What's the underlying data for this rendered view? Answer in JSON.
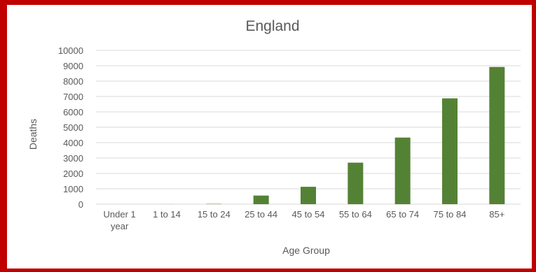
{
  "chart_data": {
    "type": "bar",
    "title": "England",
    "xlabel": "Age Group",
    "ylabel": "Deaths",
    "categories": [
      "Under 1 year",
      "1 to 14",
      "15 to 24",
      "25 to 44",
      "45 to 54",
      "55 to 64",
      "65 to 74",
      "75 to 84",
      "85+"
    ],
    "category_lines": [
      [
        "Under 1",
        "year"
      ],
      [
        "1 to 14"
      ],
      [
        "15 to 24"
      ],
      [
        "25 to 44"
      ],
      [
        "45 to 54"
      ],
      [
        "55 to 64"
      ],
      [
        "65 to 74"
      ],
      [
        "75 to 84"
      ],
      [
        "85+"
      ]
    ],
    "values": [
      0,
      3,
      20,
      560,
      1130,
      2700,
      4330,
      6880,
      8920
    ],
    "ylim": [
      0,
      10000
    ],
    "yticks": [
      0,
      1000,
      2000,
      3000,
      4000,
      5000,
      6000,
      7000,
      8000,
      9000,
      10000
    ],
    "grid": true,
    "legend": "none",
    "colors": {
      "bar": "#548235",
      "grid": "#d9d9d9",
      "frame": "#c00000"
    }
  }
}
